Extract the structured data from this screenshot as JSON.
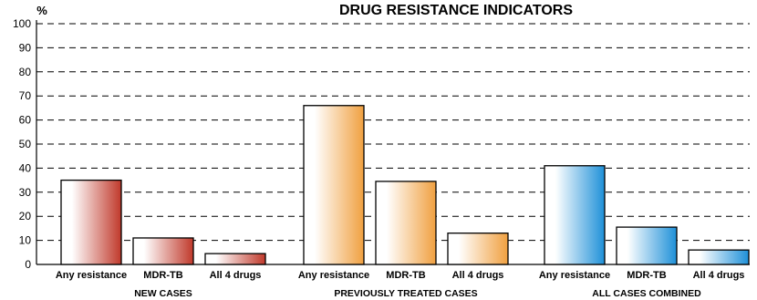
{
  "chart_data": {
    "type": "bar",
    "title": "DRUG RESISTANCE INDICATORS",
    "ylabel": "%",
    "ylim": [
      0,
      100
    ],
    "yticks": [
      0,
      10,
      20,
      30,
      40,
      50,
      60,
      70,
      80,
      90,
      100
    ],
    "grid": true,
    "groups": [
      {
        "name": "NEW CASES",
        "color": "#c0392b",
        "categories": [
          "Any resistance",
          "MDR-TB",
          "All 4 drugs"
        ],
        "values": [
          35,
          11,
          4.5
        ]
      },
      {
        "name": "PREVIOUSLY TREATED CASES",
        "color": "#f0a040",
        "categories": [
          "Any resistance",
          "MDR-TB",
          "All 4 drugs"
        ],
        "values": [
          66,
          34.5,
          13
        ]
      },
      {
        "name": "ALL CASES COMBINED",
        "color": "#1e90d8",
        "categories": [
          "Any resistance",
          "MDR-TB",
          "All 4 drugs"
        ],
        "values": [
          41,
          15.5,
          6
        ]
      }
    ]
  }
}
